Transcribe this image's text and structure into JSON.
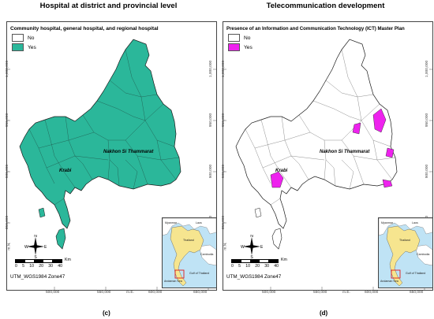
{
  "panels": [
    {
      "title": "Hospital at district and provincial level",
      "legend_title": "Community hospital, general hospital, and regional hospital",
      "legend": [
        {
          "label": "No",
          "color": "#ffffff"
        },
        {
          "label": "Yes",
          "color": "#2bb79a"
        }
      ],
      "cities": [
        "Krabi",
        "Nakhon Si Thammarat"
      ],
      "caption": "(c)"
    },
    {
      "title": "Telecommunication development",
      "legend_title": "Presence of an Information and Communication Technology (ICT) Master Plan",
      "legend": [
        {
          "label": "No",
          "color": "#ffffff"
        },
        {
          "label": "Yes",
          "color": "#ee22ee"
        }
      ],
      "cities": [
        "Krabi",
        "Nakhon Si Thammarat"
      ],
      "caption": "(d)"
    }
  ],
  "axes": {
    "y_ticks": [
      "1,000,000",
      "950,000",
      "900,000",
      "850,000"
    ],
    "x_ticks": [
      "500,000",
      "550,000",
      "600,000",
      "650,000"
    ],
    "y_unit": "m.N.",
    "x_unit": "m.E."
  },
  "projection": "UTM_WGS1984 Zone47",
  "scale": {
    "ticks": [
      "0",
      "5",
      "10",
      "20",
      "30",
      "40"
    ],
    "unit": "Km"
  },
  "compass": {
    "n": "N",
    "s": "S",
    "e": "E",
    "w": "W"
  },
  "inset": {
    "labels": [
      "Myanmar",
      "Laos",
      "Thailand",
      "Cambodia",
      "Andaman Sea",
      "Gulf of Thailand"
    ]
  }
}
